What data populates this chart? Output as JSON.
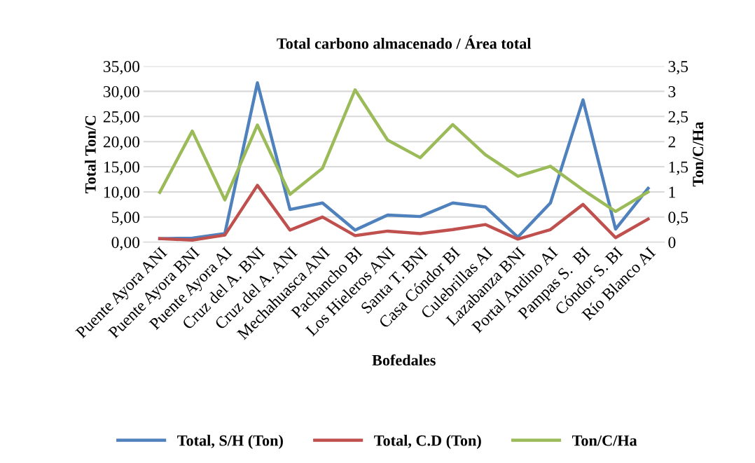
{
  "chart_data": {
    "type": "line",
    "title": "Total carbono almacenado / Área total",
    "xlabel": "Bofedales",
    "ylabel": "Total Ton/C",
    "y2label": "Ton/C/Ha",
    "categories": [
      "Puente Ayora ANI",
      "Puente Ayora BNI",
      "Puente Ayora AI",
      "Cruz del A. BNI",
      "Cruz del A. ANI",
      "Mechahuasca ANI",
      "Pachancho BI",
      "Los Hieleros ANI",
      "Santa T. BNI",
      "Casa Cóndor BI",
      "Culebrillas AI",
      "Lazabanza BNI",
      "Portal Andino AI",
      "Pampas S.  BI",
      "Cóndor S. BI",
      "Río Blanco AI"
    ],
    "series": [
      {
        "name": "Total, S/H (Ton)",
        "color": "#4f81bd",
        "values": [
          0.7,
          0.8,
          1.7,
          31.7,
          6.5,
          7.8,
          2.4,
          5.4,
          5.1,
          7.8,
          7.0,
          1.0,
          7.8,
          28.3,
          2.6,
          10.7
        ]
      },
      {
        "name": "Total, C.D (Ton)",
        "color": "#c0504d",
        "values": [
          0.7,
          0.4,
          1.4,
          11.3,
          2.4,
          5.0,
          1.3,
          2.2,
          1.7,
          2.5,
          3.5,
          0.6,
          2.5,
          7.5,
          0.9,
          4.6
        ]
      },
      {
        "name": "Ton/C/Ha",
        "color": "#9bbb59",
        "axis": "y2",
        "values": [
          0.99,
          2.21,
          0.84,
          2.33,
          0.95,
          1.47,
          3.03,
          2.03,
          1.68,
          2.34,
          1.74,
          1.31,
          1.51,
          1.04,
          0.61,
          1.0
        ]
      }
    ],
    "ylim": [
      0,
      35
    ],
    "yticks": [
      {
        "value": 0,
        "label": "0,00"
      },
      {
        "value": 5,
        "label": "5,00"
      },
      {
        "value": 10,
        "label": "10,00"
      },
      {
        "value": 15,
        "label": "15,00"
      },
      {
        "value": 20,
        "label": "20,00"
      },
      {
        "value": 25,
        "label": "25,00"
      },
      {
        "value": 30,
        "label": "30,00"
      },
      {
        "value": 35,
        "label": "35,00"
      }
    ],
    "y2lim": [
      0,
      3.5
    ],
    "y2ticks": [
      0,
      {
        "value": 0.5,
        "label": "0,5"
      },
      1,
      {
        "value": 1.5,
        "label": "1,5"
      },
      2,
      {
        "value": 2.5,
        "label": "2,5"
      },
      3,
      {
        "value": 3.5,
        "label": "3,5"
      }
    ],
    "grid": "y",
    "legend": "bottom",
    "marker": "none",
    "line_style": "solid"
  }
}
